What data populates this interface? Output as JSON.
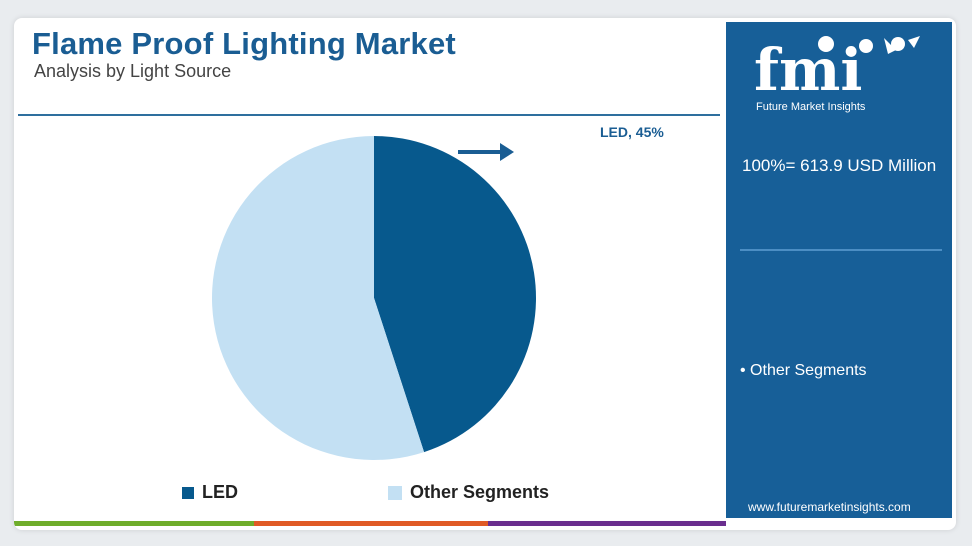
{
  "header": {
    "title": "Flame Proof Lighting Market",
    "subtitle": "Analysis by Light Source"
  },
  "sidebar": {
    "logo_text": "fmi",
    "logo_tagline": "Future Market Insights",
    "total": "100%= 613.9 USD Million",
    "bullet": "• Other Segments",
    "website": "www.futuremarketinsights.com"
  },
  "colors": {
    "led": "#07598d",
    "other": "#c3e0f3",
    "brand": "#175f98",
    "bar1": "#6fad2b",
    "bar2": "#e05a25",
    "bar3": "#6a2e8e"
  },
  "chart_data": {
    "type": "pie",
    "title": "Flame Proof Lighting Market",
    "subtitle": "Analysis by Light Source",
    "categories": [
      "LED",
      "Other Segments"
    ],
    "values": [
      45,
      55
    ],
    "unit": "%",
    "data_labels": [
      "LED, 45%"
    ],
    "legend": [
      "LED",
      "Other Segments"
    ],
    "legend_position": "bottom"
  }
}
